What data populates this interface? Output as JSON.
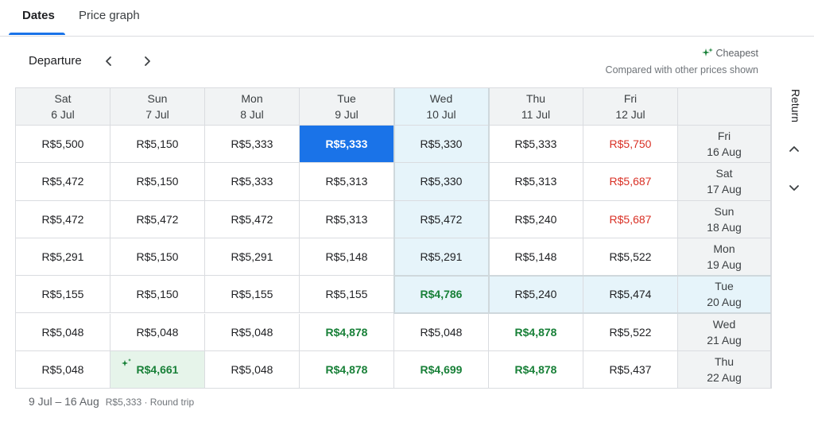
{
  "tabs": [
    {
      "label": "Dates",
      "active": true
    },
    {
      "label": "Price graph",
      "active": false
    }
  ],
  "departure": {
    "label": "Departure"
  },
  "legend": {
    "cheapest": "Cheapest",
    "note": "Compared with other prices shown",
    "cheapest_color": "#188038"
  },
  "return_label": "Return",
  "columns": [
    {
      "day": "Sat",
      "date": "6 Jul"
    },
    {
      "day": "Sun",
      "date": "7 Jul"
    },
    {
      "day": "Mon",
      "date": "8 Jul"
    },
    {
      "day": "Tue",
      "date": "9 Jul"
    },
    {
      "day": "Wed",
      "date": "10 Jul"
    },
    {
      "day": "Thu",
      "date": "11 Jul"
    },
    {
      "day": "Fri",
      "date": "12 Jul"
    }
  ],
  "rows": [
    {
      "day": "Fri",
      "date": "16 Aug",
      "prices": [
        {
          "v": "R$5,500"
        },
        {
          "v": "R$5,150"
        },
        {
          "v": "R$5,333"
        },
        {
          "v": "R$5,333",
          "state": "selected"
        },
        {
          "v": "R$5,330"
        },
        {
          "v": "R$5,333"
        },
        {
          "v": "R$5,750",
          "tone": "red"
        }
      ]
    },
    {
      "day": "Sat",
      "date": "17 Aug",
      "prices": [
        {
          "v": "R$5,472"
        },
        {
          "v": "R$5,150"
        },
        {
          "v": "R$5,333"
        },
        {
          "v": "R$5,313"
        },
        {
          "v": "R$5,330"
        },
        {
          "v": "R$5,313"
        },
        {
          "v": "R$5,687",
          "tone": "red"
        }
      ]
    },
    {
      "day": "Sun",
      "date": "18 Aug",
      "prices": [
        {
          "v": "R$5,472"
        },
        {
          "v": "R$5,472"
        },
        {
          "v": "R$5,472"
        },
        {
          "v": "R$5,313"
        },
        {
          "v": "R$5,472"
        },
        {
          "v": "R$5,240"
        },
        {
          "v": "R$5,687",
          "tone": "red"
        }
      ]
    },
    {
      "day": "Mon",
      "date": "19 Aug",
      "prices": [
        {
          "v": "R$5,291"
        },
        {
          "v": "R$5,150"
        },
        {
          "v": "R$5,291"
        },
        {
          "v": "R$5,148"
        },
        {
          "v": "R$5,291"
        },
        {
          "v": "R$5,148"
        },
        {
          "v": "R$5,522"
        }
      ]
    },
    {
      "day": "Tue",
      "date": "20 Aug",
      "prices": [
        {
          "v": "R$5,155"
        },
        {
          "v": "R$5,150"
        },
        {
          "v": "R$5,155"
        },
        {
          "v": "R$5,155"
        },
        {
          "v": "R$4,786",
          "tone": "green"
        },
        {
          "v": "R$5,240"
        },
        {
          "v": "R$5,474"
        }
      ]
    },
    {
      "day": "Wed",
      "date": "21 Aug",
      "prices": [
        {
          "v": "R$5,048"
        },
        {
          "v": "R$5,048"
        },
        {
          "v": "R$5,048"
        },
        {
          "v": "R$4,878",
          "tone": "green"
        },
        {
          "v": "R$5,048"
        },
        {
          "v": "R$4,878",
          "tone": "green"
        },
        {
          "v": "R$5,522"
        }
      ]
    },
    {
      "day": "Thu",
      "date": "22 Aug",
      "prices": [
        {
          "v": "R$5,048"
        },
        {
          "v": "R$4,661",
          "tone": "green",
          "state": "cheapest"
        },
        {
          "v": "R$5,048"
        },
        {
          "v": "R$4,878",
          "tone": "green"
        },
        {
          "v": "R$4,699",
          "tone": "green"
        },
        {
          "v": "R$4,878",
          "tone": "green"
        },
        {
          "v": "R$5,437"
        }
      ]
    }
  ],
  "highlight": {
    "column_index": 4,
    "row_index": 4
  },
  "footer": {
    "dates": "9 Jul – 16 Aug",
    "summary": "R$5,333 · Round trip"
  },
  "colors": {
    "accent": "#1a73e8",
    "green": "#188038",
    "red": "#d93025",
    "highlight": "#e6f4fa"
  }
}
